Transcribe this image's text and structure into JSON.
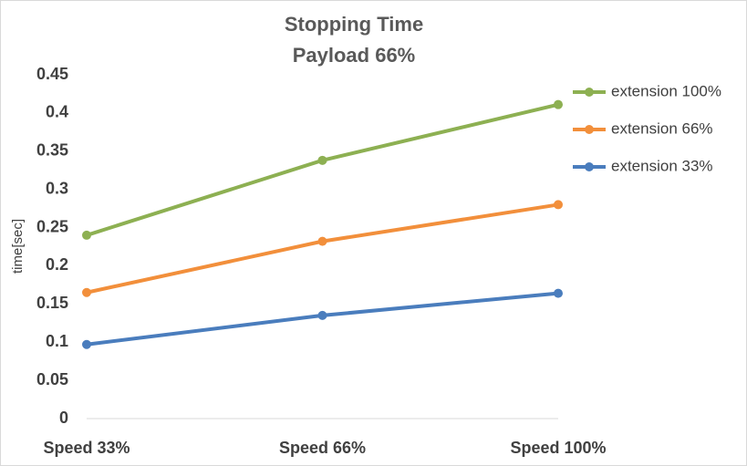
{
  "chart_data": {
    "type": "line",
    "title": "Stopping Time",
    "subtitle": "Payload 66%",
    "y_label": "time[sec]",
    "categories": [
      "Speed 33%",
      "Speed 66%",
      "Speed 100%"
    ],
    "series": [
      {
        "name": "extension 100%",
        "color": "#8db052",
        "values": [
          0.24,
          0.338,
          0.411
        ]
      },
      {
        "name": "extension 66%",
        "color": "#f28f3b",
        "values": [
          0.165,
          0.232,
          0.28
        ]
      },
      {
        "name": "extension 33%",
        "color": "#4a7dbd",
        "values": [
          0.097,
          0.135,
          0.164
        ]
      }
    ],
    "ylim": [
      0,
      0.45
    ],
    "yticks": [
      0,
      0.05,
      0.1,
      0.15,
      0.2,
      0.25,
      0.3,
      0.35,
      0.4,
      0.45
    ],
    "grid": false,
    "legend": "right"
  }
}
